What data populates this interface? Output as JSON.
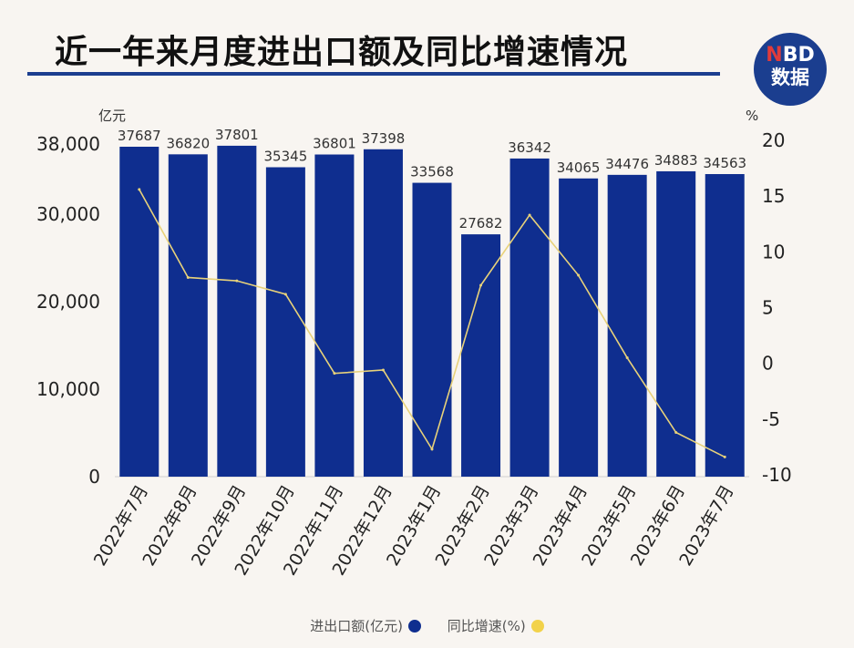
{
  "title": "近一年来月度进出口额及同比增速情况",
  "logo": {
    "top_text": "NBD",
    "bottom_text": "数据"
  },
  "colors": {
    "bar": "#0f2e8f",
    "line": "#e8d27a",
    "legend_bar_dot": "#0f2e8f",
    "legend_line_dot": "#f2d24a",
    "title_rule": "#1b3e8f"
  },
  "chart_data": {
    "type": "bar+line",
    "categories": [
      "2022年7月",
      "2022年8月",
      "2022年9月",
      "2022年10月",
      "2022年11月",
      "2022年12月",
      "2023年1月",
      "2023年2月",
      "2023年3月",
      "2023年4月",
      "2023年5月",
      "2023年6月",
      "2023年7月"
    ],
    "series": [
      {
        "name": "进出口额(亿元)",
        "type": "bar",
        "axis": "left",
        "values": [
          37687,
          36820,
          37801,
          35345,
          36801,
          37398,
          33568,
          27682,
          36342,
          34065,
          34476,
          34883,
          34563
        ]
      },
      {
        "name": "同比增速(%)",
        "type": "line",
        "axis": "right",
        "values": [
          15.6,
          7.7,
          7.4,
          6.2,
          -0.9,
          -0.6,
          -7.7,
          7.0,
          13.3,
          7.9,
          0.5,
          -6.2,
          -8.4
        ]
      }
    ],
    "left_axis": {
      "unit": "亿元",
      "ticks": [
        "0",
        "10,000",
        "20,000",
        "30,000",
        "38,000"
      ],
      "tick_values": [
        0,
        10000,
        20000,
        30000,
        38000
      ],
      "ylim": [
        0,
        38000
      ]
    },
    "right_axis": {
      "unit": "%",
      "ticks": [
        "-10",
        "-5",
        "0",
        "5",
        "10",
        "15",
        "20"
      ],
      "tick_values": [
        -10,
        -5,
        0,
        5,
        10,
        15,
        20
      ],
      "ylim": [
        -10,
        20
      ]
    },
    "data_labels": [
      "37687",
      "36820",
      "37801",
      "35345",
      "36801",
      "37398",
      "33568",
      "27682",
      "36342",
      "34065",
      "34476",
      "34883",
      "34563"
    ],
    "legend_position": "bottom-center",
    "grid": false
  }
}
